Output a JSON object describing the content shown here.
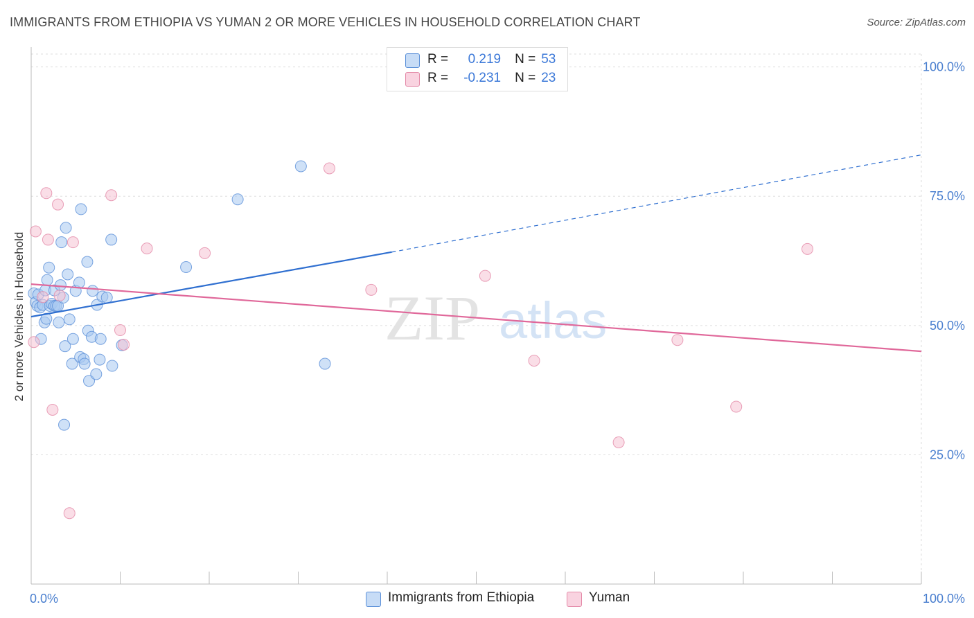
{
  "title": "IMMIGRANTS FROM ETHIOPIA VS YUMAN 2 OR MORE VEHICLES IN HOUSEHOLD CORRELATION CHART",
  "source": "Source: ZipAtlas.com",
  "watermark": {
    "zip": "ZIP",
    "atlas": "atlas"
  },
  "legend": {
    "r_label": "R =",
    "n_label": "N =",
    "rows": [
      {
        "r": "0.219",
        "n": "53"
      },
      {
        "r": "-0.231",
        "n": "23"
      }
    ]
  },
  "colors": {
    "blue_fill": "#a8c8f0",
    "blue_stroke": "#5a8fd8",
    "blue_line": "#2f6fd0",
    "pink_fill": "#f6c3d3",
    "pink_stroke": "#e48aa8",
    "pink_line": "#e0689a",
    "grid": "#dddddd",
    "axis_text": "#4a7fcf"
  },
  "chart_data": {
    "type": "scatter",
    "title": "IMMIGRANTS FROM ETHIOPIA VS YUMAN 2 OR MORE VEHICLES IN HOUSEHOLD CORRELATION CHART",
    "xlabel": "",
    "ylabel": "2 or more Vehicles in Household",
    "xlim": [
      0,
      100
    ],
    "ylim": [
      0,
      102.5
    ],
    "x_tick_labels": [
      "0.0%",
      "100.0%"
    ],
    "y_ticks": [
      25,
      50,
      75,
      100
    ],
    "y_tick_labels": [
      "25.0%",
      "50.0%",
      "75.0%",
      "100.0%"
    ],
    "grid": true,
    "series": [
      {
        "name": "Immigrants from Ethiopia",
        "color": "#a8c8f0",
        "points": [
          [
            0.3,
            56.2
          ],
          [
            0.5,
            54.5
          ],
          [
            0.7,
            53.8
          ],
          [
            0.8,
            56.0
          ],
          [
            1.0,
            53.5
          ],
          [
            1.1,
            47.4
          ],
          [
            1.3,
            54.0
          ],
          [
            1.5,
            50.6
          ],
          [
            1.6,
            56.8
          ],
          [
            1.7,
            51.3
          ],
          [
            1.8,
            58.8
          ],
          [
            2.0,
            61.2
          ],
          [
            2.1,
            53.8
          ],
          [
            2.3,
            54.2
          ],
          [
            2.6,
            56.8
          ],
          [
            2.6,
            53.8
          ],
          [
            2.8,
            53.8
          ],
          [
            3.0,
            53.8
          ],
          [
            3.1,
            50.6
          ],
          [
            3.3,
            57.8
          ],
          [
            3.4,
            66.1
          ],
          [
            3.6,
            55.4
          ],
          [
            3.7,
            30.8
          ],
          [
            3.8,
            46.0
          ],
          [
            3.9,
            68.9
          ],
          [
            4.1,
            59.9
          ],
          [
            4.3,
            51.2
          ],
          [
            4.6,
            42.6
          ],
          [
            4.7,
            47.4
          ],
          [
            5.0,
            56.7
          ],
          [
            5.4,
            58.3
          ],
          [
            5.5,
            43.9
          ],
          [
            5.6,
            72.5
          ],
          [
            5.9,
            43.5
          ],
          [
            6.0,
            42.6
          ],
          [
            6.3,
            62.3
          ],
          [
            6.4,
            49.0
          ],
          [
            6.5,
            39.3
          ],
          [
            6.8,
            47.8
          ],
          [
            6.9,
            56.7
          ],
          [
            7.3,
            40.6
          ],
          [
            7.4,
            54.0
          ],
          [
            7.7,
            43.4
          ],
          [
            7.8,
            47.4
          ],
          [
            8.0,
            55.6
          ],
          [
            8.5,
            55.4
          ],
          [
            9.0,
            66.6
          ],
          [
            9.1,
            42.2
          ],
          [
            10.2,
            46.2
          ],
          [
            17.4,
            61.3
          ],
          [
            23.2,
            74.4
          ],
          [
            30.3,
            80.8
          ],
          [
            33.0,
            42.6
          ]
        ],
        "trend": {
          "x": [
            0,
            40.5
          ],
          "y": [
            51.7,
            64.2
          ],
          "dashed_to": [
            100,
            83.0
          ]
        }
      },
      {
        "name": "Yuman",
        "color": "#f6c3d3",
        "points": [
          [
            0.3,
            46.8
          ],
          [
            0.5,
            68.2
          ],
          [
            1.3,
            55.5
          ],
          [
            1.7,
            75.6
          ],
          [
            1.9,
            66.6
          ],
          [
            2.4,
            33.7
          ],
          [
            3.0,
            73.4
          ],
          [
            3.2,
            55.8
          ],
          [
            4.3,
            13.7
          ],
          [
            4.7,
            66.1
          ],
          [
            9.0,
            75.2
          ],
          [
            10.0,
            49.1
          ],
          [
            10.4,
            46.3
          ],
          [
            13.0,
            64.9
          ],
          [
            19.5,
            64.0
          ],
          [
            33.5,
            80.4
          ],
          [
            38.2,
            56.9
          ],
          [
            51.0,
            59.6
          ],
          [
            56.5,
            43.2
          ],
          [
            66.0,
            27.4
          ],
          [
            72.6,
            47.2
          ],
          [
            79.2,
            34.3
          ],
          [
            87.2,
            64.8
          ]
        ],
        "trend": {
          "x": [
            0,
            100
          ],
          "y": [
            58.0,
            45.0
          ]
        }
      }
    ]
  },
  "bottom_legend": [
    "Immigrants from Ethiopia",
    "Yuman"
  ]
}
